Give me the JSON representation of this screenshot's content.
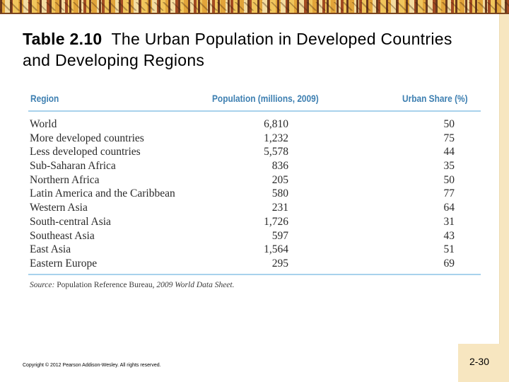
{
  "slide": {
    "title_number": "Table 2.10",
    "title_text": "The Urban Population in Developed Countries and Developing Regions",
    "page_number": "2-30",
    "copyright": "Copyright © 2012 Pearson Addison-Wesley. All rights reserved."
  },
  "table": {
    "headers": {
      "region": "Region",
      "population": "Population (millions, 2009)",
      "urban_share": "Urban Share (%)"
    },
    "rows": [
      {
        "region": "World",
        "population": "6,810",
        "urban_share": "50"
      },
      {
        "region": "More developed countries",
        "population": "1,232",
        "urban_share": "75"
      },
      {
        "region": "Less developed countries",
        "population": "5,578",
        "urban_share": "44"
      },
      {
        "region": "Sub-Saharan Africa",
        "population": "836",
        "urban_share": "35"
      },
      {
        "region": "Northern Africa",
        "population": "205",
        "urban_share": "50"
      },
      {
        "region": "Latin America and the Caribbean",
        "population": "580",
        "urban_share": "77"
      },
      {
        "region": "Western Asia",
        "population": "231",
        "urban_share": "64"
      },
      {
        "region": "South-central Asia",
        "population": "1,726",
        "urban_share": "31"
      },
      {
        "region": "Southeast Asia",
        "population": "597",
        "urban_share": "43"
      },
      {
        "region": "East Asia",
        "population": "1,564",
        "urban_share": "51"
      },
      {
        "region": "Eastern Europe",
        "population": "295",
        "urban_share": "69"
      }
    ],
    "source_label": "Source:",
    "source_org": "Population Reference Bureau,",
    "source_title": "2009 World Data Sheet."
  }
}
